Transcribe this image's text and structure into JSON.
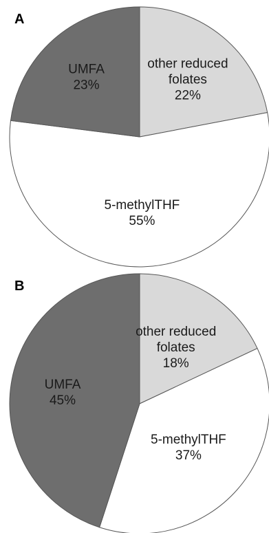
{
  "chart_data": [
    {
      "panel": "A",
      "type": "pie",
      "slices": [
        {
          "label": "other reduced folates",
          "label_lines": [
            "other reduced",
            "folates"
          ],
          "value": 22,
          "pct_label": "22%",
          "color": "#d9d9d9"
        },
        {
          "label": "5-methylTHF",
          "label_lines": [
            "5-methylTHF"
          ],
          "value": 55,
          "pct_label": "55%",
          "color": "#ffffff"
        },
        {
          "label": "UMFA",
          "label_lines": [
            "UMFA"
          ],
          "value": 23,
          "pct_label": "23%",
          "color": "#6e6e6e"
        }
      ]
    },
    {
      "panel": "B",
      "type": "pie",
      "slices": [
        {
          "label": "other reduced folates",
          "label_lines": [
            "other reduced",
            "folates"
          ],
          "value": 18,
          "pct_label": "18%",
          "color": "#d9d9d9"
        },
        {
          "label": "5-methylTHF",
          "label_lines": [
            "5-methylTHF"
          ],
          "value": 37,
          "pct_label": "37%",
          "color": "#ffffff"
        },
        {
          "label": "UMFA",
          "label_lines": [
            "UMFA"
          ],
          "value": 45,
          "pct_label": "45%",
          "color": "#6e6e6e"
        }
      ]
    }
  ],
  "stroke_color": "#555555"
}
